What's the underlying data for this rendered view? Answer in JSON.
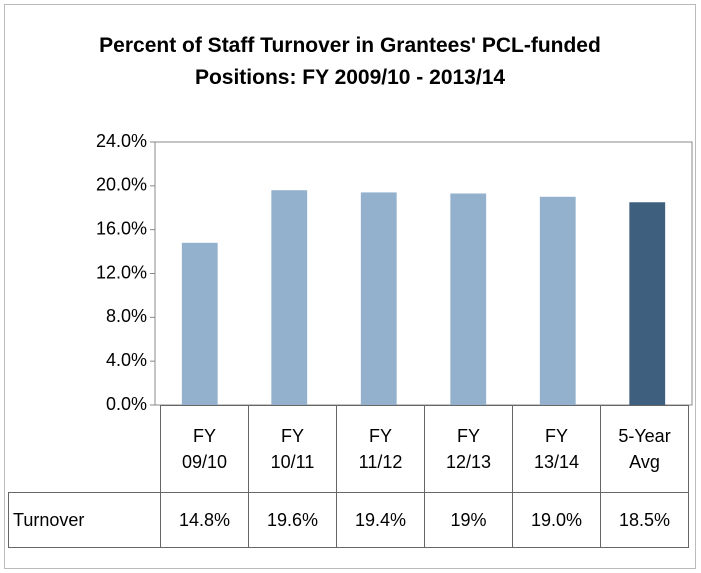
{
  "chart_data": {
    "type": "bar",
    "title": "Percent of Staff Turnover in Grantees' PCL-funded Positions: FY 2009/10 - 2013/14",
    "categories": [
      "FY 09/10",
      "FY 10/11",
      "FY 11/12",
      "FY 12/13",
      "FY 13/14",
      "5-Year Avg"
    ],
    "series": [
      {
        "name": "Turnover",
        "colors": [
          "#93b1cd",
          "#93b1cd",
          "#93b1cd",
          "#93b1cd",
          "#93b1cd",
          "#3e5f7e"
        ],
        "values": [
          14.8,
          19.6,
          19.4,
          19.3,
          19.0,
          18.5
        ],
        "value_labels": [
          "14.8%",
          "19.6%",
          "19.4%",
          "19%",
          "19.0%",
          "18.5%"
        ]
      }
    ],
    "ylim": [
      0,
      24
    ],
    "yticks": [
      {
        "value": 0,
        "label": "0.0%"
      },
      {
        "value": 4,
        "label": "4.0%"
      },
      {
        "value": 8,
        "label": "8.0%"
      },
      {
        "value": 12,
        "label": "12.0%"
      },
      {
        "value": 16,
        "label": "16.0%"
      },
      {
        "value": 20,
        "label": "20.0%"
      },
      {
        "value": 24,
        "label": "24.0%"
      }
    ],
    "grid": false
  }
}
